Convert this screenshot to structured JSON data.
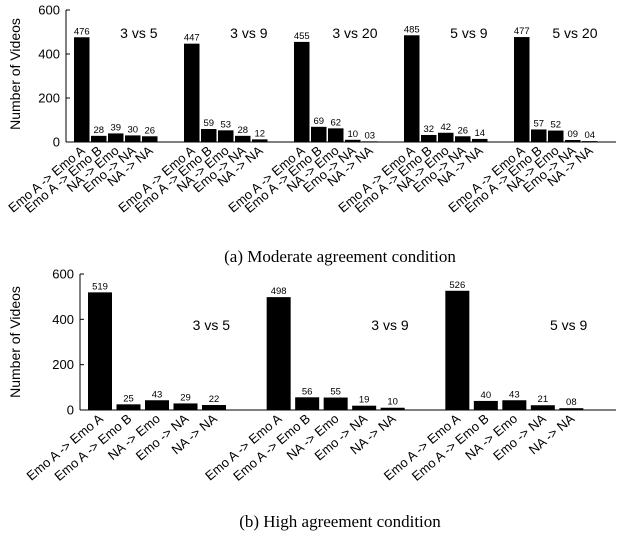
{
  "chart_data": [
    {
      "type": "bar",
      "caption": "(a)  Moderate agreement condition",
      "ylabel": "Number of Videos",
      "ylim": [
        0,
        600
      ],
      "yticks": [
        "0",
        "200",
        "400",
        "600"
      ],
      "categories": [
        "Emo A -> Emo A",
        "Emo A -> Emo B",
        "NA -> Emo",
        "Emo -> NA",
        "NA -> NA"
      ],
      "groups": [
        {
          "name": "3 vs 5",
          "values": [
            476,
            28,
            39,
            30,
            26
          ],
          "labels": [
            "476",
            "28",
            "39",
            "30",
            "26"
          ]
        },
        {
          "name": "3 vs 9",
          "values": [
            447,
            59,
            53,
            28,
            12
          ],
          "labels": [
            "447",
            "59",
            "53",
            "28",
            "12"
          ]
        },
        {
          "name": "3 vs 20",
          "values": [
            455,
            69,
            62,
            10,
            3
          ],
          "labels": [
            "455",
            "69",
            "62",
            "10",
            "03"
          ]
        },
        {
          "name": "5 vs 9",
          "values": [
            485,
            32,
            42,
            26,
            14
          ],
          "labels": [
            "485",
            "32",
            "42",
            "26",
            "14"
          ]
        },
        {
          "name": "5 vs 20",
          "values": [
            477,
            57,
            52,
            9,
            4
          ],
          "labels": [
            "477",
            "57",
            "52",
            "09",
            "04"
          ]
        }
      ]
    },
    {
      "type": "bar",
      "caption": "(b)  High agreement condition",
      "ylabel": "Number of Videos",
      "ylim": [
        0,
        600
      ],
      "yticks": [
        "0",
        "200",
        "400",
        "600"
      ],
      "categories": [
        "Emo A -> Emo A",
        "Emo A -> Emo B",
        "NA -> Emo",
        "Emo -> NA",
        "NA -> NA"
      ],
      "groups": [
        {
          "name": "3 vs 5",
          "values": [
            519,
            25,
            43,
            29,
            22
          ],
          "labels": [
            "519",
            "25",
            "43",
            "29",
            "22"
          ]
        },
        {
          "name": "3 vs 9",
          "values": [
            498,
            56,
            55,
            19,
            10
          ],
          "labels": [
            "498",
            "56",
            "55",
            "19",
            "10"
          ]
        },
        {
          "name": "5 vs 9",
          "values": [
            526,
            40,
            43,
            21,
            8
          ],
          "labels": [
            "526",
            "40",
            "43",
            "21",
            "08"
          ]
        }
      ]
    }
  ],
  "colors": {
    "bar": "#000000",
    "axis": "#000000",
    "background": "#ffffff"
  }
}
